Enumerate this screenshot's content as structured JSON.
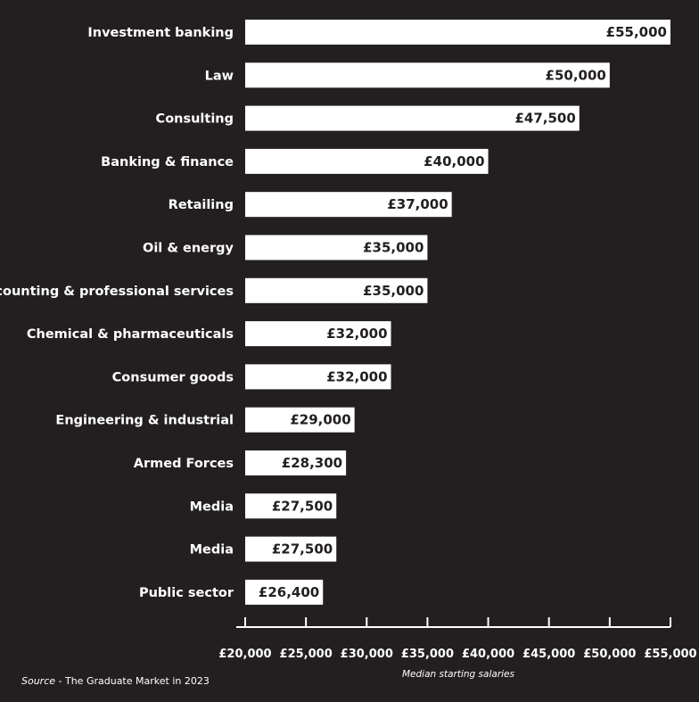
{
  "chart_data": {
    "type": "bar",
    "orientation": "horizontal",
    "categories": [
      "Investment banking",
      "Law",
      "Consulting",
      "Banking & finance",
      "Retailing",
      "Oil & energy",
      "Accounting & professional services",
      "Chemical & pharmaceuticals",
      "Consumer goods",
      "Engineering & industrial",
      "Armed Forces",
      "Media",
      "Media",
      "Public sector"
    ],
    "values": [
      55000,
      50000,
      47500,
      40000,
      37000,
      35000,
      35000,
      32000,
      32000,
      29000,
      28300,
      27500,
      27500,
      26400
    ],
    "value_labels": [
      "£55,000",
      "£50,000",
      "£47,500",
      "£40,000",
      "£37,000",
      "£35,000",
      "£35,000",
      "£32,000",
      "£32,000",
      "£29,000",
      "£28,300",
      "£27,500",
      "£27,500",
      "£26,400"
    ],
    "xlim": [
      20000,
      55000
    ],
    "x_ticks": [
      20000,
      25000,
      30000,
      35000,
      40000,
      45000,
      50000,
      55000
    ],
    "x_tick_labels": [
      "£20,000",
      "£25,000",
      "£30,000",
      "£35,000",
      "£40,000",
      "£45,000",
      "£50,000",
      "£55,000"
    ],
    "xlabel": "Median starting salaries",
    "grid": false,
    "colors": {
      "background": "#231f20",
      "bar": "#ffffff",
      "text": "#ffffff",
      "value_text": "#231f20"
    }
  },
  "source": {
    "prefix": "Source",
    "text": " - The Graduate Market in 2023"
  }
}
